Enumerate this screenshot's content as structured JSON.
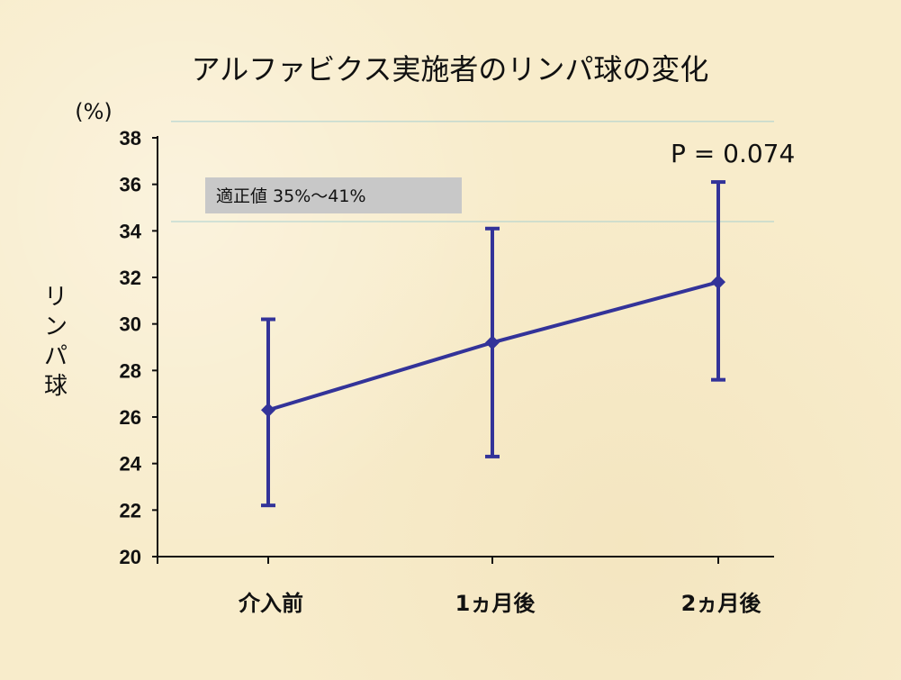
{
  "chart_data": {
    "type": "line",
    "title": "アルファビクス実施者のリンパ球の変化",
    "ylabel": "リンパ球",
    "yunit": "(%)",
    "ylim": [
      20,
      38
    ],
    "yticks": [
      "20",
      "22",
      "24",
      "26",
      "28",
      "30",
      "32",
      "34",
      "36",
      "38"
    ],
    "categories": [
      "介入前",
      "1ヵ月後",
      "2ヵ月後"
    ],
    "series": [
      {
        "values": [
          26.3,
          29.2,
          31.8
        ],
        "error_low": [
          22.2,
          24.3,
          27.6
        ],
        "error_high": [
          30.2,
          34.1,
          36.1
        ],
        "color": "#333399"
      }
    ],
    "reference_lines": [
      34.4,
      38.7
    ],
    "reference_color": "#a8d0d0",
    "annotation_box": "適正値  35%～41%",
    "annotation_box_color": "#c8c8c8",
    "p_value_label": "P =  0.074",
    "grid": false
  }
}
